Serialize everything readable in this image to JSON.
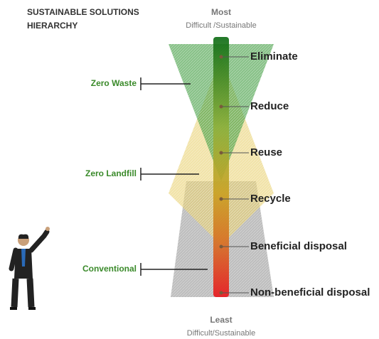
{
  "header": {
    "title_lines": [
      "SUSTAINABLE SOLUTIONS",
      "HIERARCHY"
    ]
  },
  "top": {
    "label": "Most",
    "sublabel": "Difficult /Sustainable"
  },
  "bottom": {
    "label": "Least",
    "sublabel": "Difficult/Sustainable"
  },
  "levels": [
    "Eliminate",
    "Reduce",
    "Reuse",
    "Recycle",
    "Beneficial disposal",
    "Non-beneficial disposal"
  ],
  "categories": [
    "Zero Waste",
    "Zero Landfill",
    "Conventional"
  ]
}
